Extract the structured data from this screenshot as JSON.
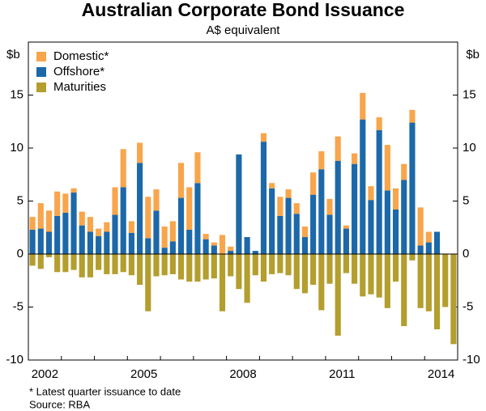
{
  "chart_data": {
    "type": "bar",
    "title": "Australian Corporate Bond Issuance",
    "subtitle": "A$ equivalent",
    "y_label": "$b",
    "footnote": "*      Latest quarter issuance to date",
    "source": "Source: RBA",
    "categories": [
      "2002",
      null,
      null,
      null,
      null,
      null,
      null,
      null,
      null,
      null,
      null,
      null,
      "2005",
      null,
      null,
      null,
      null,
      null,
      null,
      null,
      null,
      null,
      null,
      null,
      "2008",
      null,
      null,
      null,
      null,
      null,
      null,
      null,
      null,
      null,
      null,
      null,
      "2011",
      null,
      null,
      null,
      null,
      null,
      null,
      null,
      null,
      null,
      null,
      null,
      "2014",
      null,
      null,
      null
    ],
    "series": [
      {
        "name": "Domestic*",
        "color": "#f8a54b",
        "values": [
          1.2,
          2.4,
          2.0,
          2.3,
          1.8,
          0.4,
          1.3,
          1.4,
          0.7,
          0.9,
          2.6,
          3.6,
          1.1,
          1.9,
          3.9,
          2.0,
          2.0,
          1.9,
          3.3,
          4.0,
          2.9,
          0.5,
          0.3,
          1.8,
          0.4,
          0,
          0,
          0,
          0.8,
          0.5,
          1.8,
          0.8,
          1.0,
          1.0,
          2.1,
          1.7,
          1.5,
          2.3,
          0.3,
          1.0,
          2.5,
          1.3,
          1.2,
          4.3,
          2.0,
          1.5,
          1.2,
          3.6,
          1.0,
          0,
          0,
          0
        ]
      },
      {
        "name": "Offshore*",
        "color": "#1c68a8",
        "values": [
          2.3,
          2.4,
          2.1,
          3.6,
          3.9,
          5.8,
          2.7,
          2.1,
          1.7,
          2.1,
          3.7,
          6.3,
          2.0,
          8.6,
          1.5,
          4.1,
          0.6,
          1.2,
          5.3,
          2.3,
          6.7,
          1.4,
          0.8,
          0,
          0.3,
          9.4,
          1.6,
          0.3,
          10.6,
          6.2,
          3.6,
          5.3,
          3.8,
          1.6,
          5.6,
          8.0,
          3.7,
          8.8,
          2.4,
          8.5,
          12.7,
          5.1,
          11.7,
          6.0,
          4.2,
          7.0,
          12.4,
          0.8,
          1.1,
          2.1,
          0,
          0
        ]
      },
      {
        "name": "Maturities",
        "color": "#b39e2e",
        "values": [
          -1.1,
          -1.4,
          -0.3,
          -1.7,
          -1.7,
          -1.5,
          -2.2,
          -2.2,
          -1.5,
          -1.9,
          -1.9,
          -1.7,
          -2.0,
          -2.9,
          -5.4,
          -2.1,
          -2.0,
          -1.9,
          -2.4,
          -2.6,
          -2.6,
          -2.4,
          -2.3,
          -5.4,
          -2.1,
          -3.3,
          -4.6,
          -2.0,
          -2.6,
          -1.9,
          -1.8,
          -2.0,
          -3.3,
          -3.7,
          -2.9,
          -5.3,
          -2.8,
          -7.7,
          -1.8,
          -2.8,
          -4.0,
          -3.8,
          -4.1,
          -5.1,
          -2.6,
          -6.8,
          -0.6,
          -5.1,
          -5.4,
          -7.1,
          -5.0,
          -8.5
        ]
      }
    ],
    "ylim": [
      -10,
      20
    ],
    "yticks": [
      -10,
      -5,
      0,
      5,
      10,
      15
    ],
    "legend": "top-left"
  }
}
